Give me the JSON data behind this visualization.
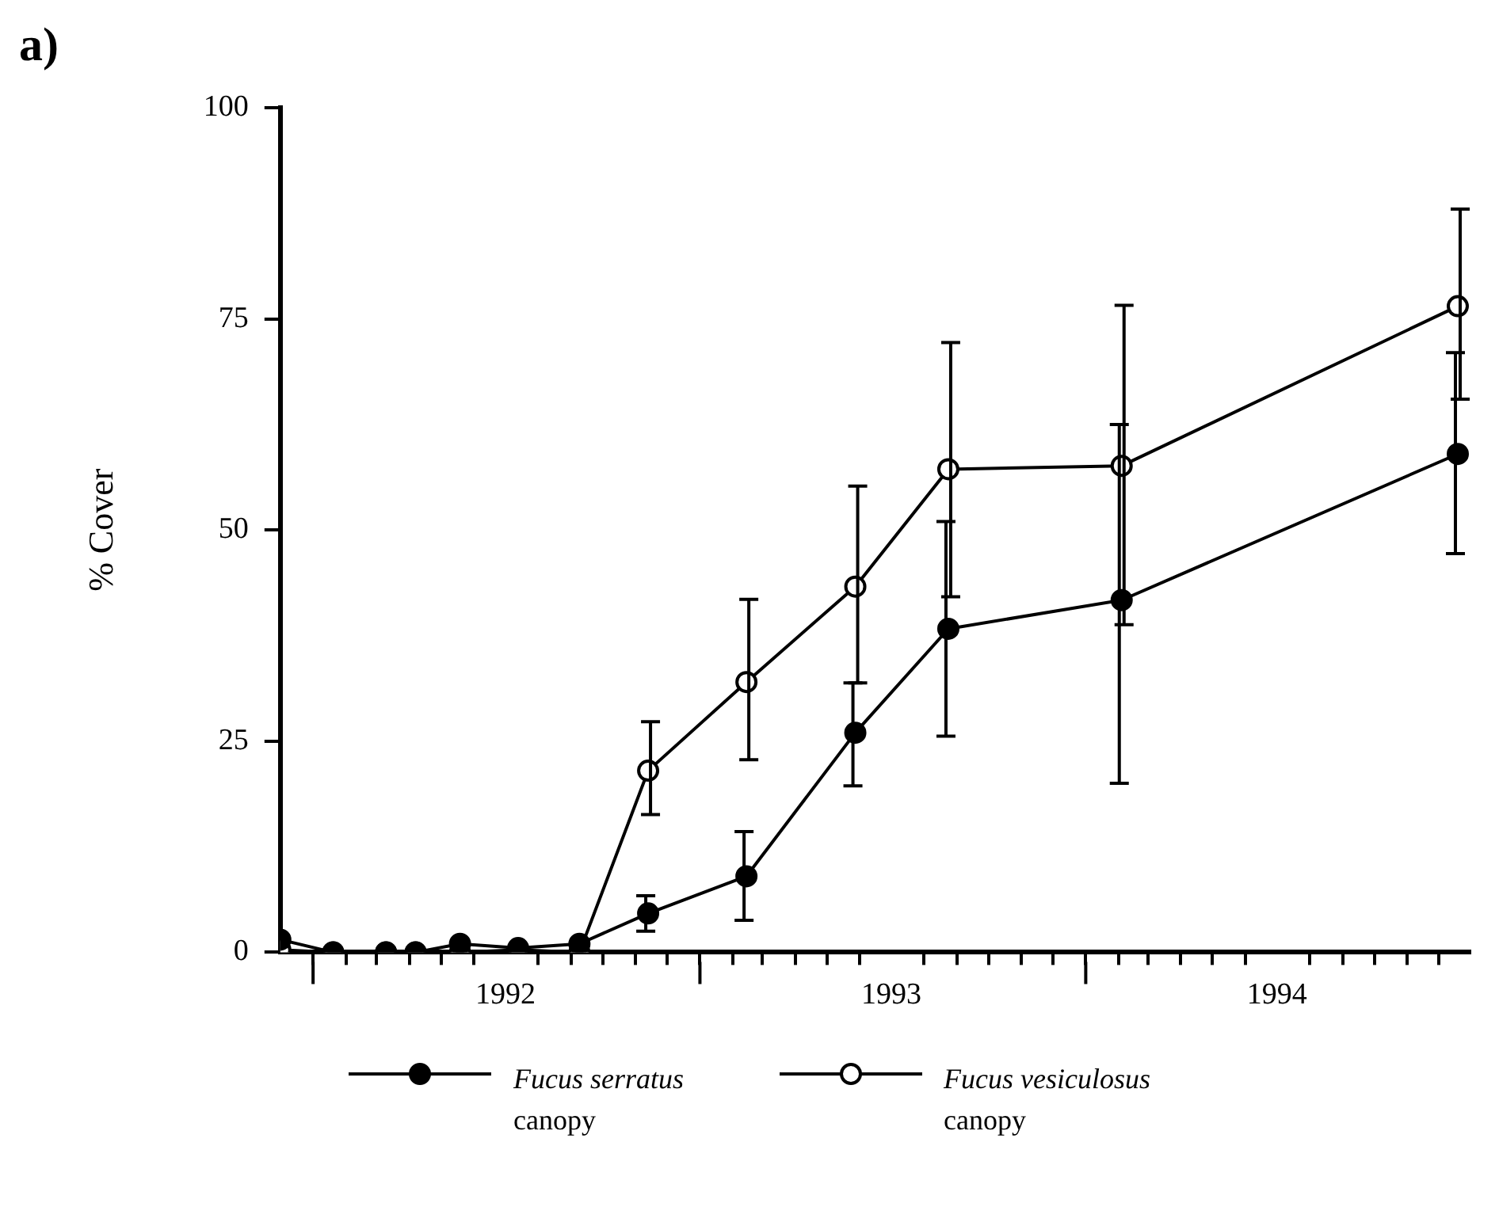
{
  "chart_data": {
    "type": "line",
    "ylabel": "% Cover",
    "annotations": [
      "a)"
    ],
    "xlim": [
      "1991-12-01",
      "1994-12-31"
    ],
    "xticks": [
      {
        "value": "1992-01-01",
        "label": null
      },
      {
        "value": "1992-02-01",
        "label": null
      },
      {
        "value": "1992-03-01",
        "label": null
      },
      {
        "value": "1992-04-01",
        "label": null
      },
      {
        "value": "1992-05-01",
        "label": null
      },
      {
        "value": "1992-06-01",
        "label": null
      },
      {
        "value": "1992-07-01",
        "label": "1992"
      },
      {
        "value": "1992-08-01",
        "label": null
      },
      {
        "value": "1992-09-01",
        "label": null
      },
      {
        "value": "1992-10-01",
        "label": null
      },
      {
        "value": "1992-11-01",
        "label": null
      },
      {
        "value": "1992-12-01",
        "label": null
      },
      {
        "value": "1993-01-01",
        "label": null
      },
      {
        "value": "1993-02-01",
        "label": null
      },
      {
        "value": "1993-03-01",
        "label": null
      },
      {
        "value": "1993-04-01",
        "label": null
      },
      {
        "value": "1993-05-01",
        "label": null
      },
      {
        "value": "1993-06-01",
        "label": null
      },
      {
        "value": "1993-07-01",
        "label": "1993"
      },
      {
        "value": "1993-08-01",
        "label": null
      },
      {
        "value": "1993-09-01",
        "label": null
      },
      {
        "value": "1993-10-01",
        "label": null
      },
      {
        "value": "1993-11-01",
        "label": null
      },
      {
        "value": "1993-12-01",
        "label": null
      },
      {
        "value": "1994-01-01",
        "label": null
      },
      {
        "value": "1994-02-01",
        "label": null
      },
      {
        "value": "1994-03-01",
        "label": null
      },
      {
        "value": "1994-04-01",
        "label": null
      },
      {
        "value": "1994-05-01",
        "label": null
      },
      {
        "value": "1994-06-01",
        "label": null
      },
      {
        "value": "1994-07-01",
        "label": "1994"
      },
      {
        "value": "1994-08-01",
        "label": null
      },
      {
        "value": "1994-09-01",
        "label": null
      },
      {
        "value": "1994-10-01",
        "label": null
      },
      {
        "value": "1994-11-01",
        "label": null
      },
      {
        "value": "1994-12-01",
        "label": null
      }
    ],
    "ylim": [
      0,
      100
    ],
    "yticks": [
      0,
      25,
      50,
      75,
      100
    ],
    "x": [
      "1991-12-01",
      "1992-01-20",
      "1992-03-10",
      "1992-04-07",
      "1992-05-19",
      "1992-07-13",
      "1992-09-09",
      "1992-11-13",
      "1993-02-14",
      "1993-05-28",
      "1993-08-24",
      "1994-02-04",
      "1994-12-19"
    ],
    "marker": "circle",
    "legend": "bottom",
    "series": [
      {
        "name": "Fucus serratus canopy",
        "color": "#000000",
        "values": [
          1.5,
          0,
          0,
          0,
          1,
          0.5,
          1,
          4.6,
          9,
          26,
          38.3,
          41.7,
          59
        ],
        "errors": [
          null,
          null,
          null,
          null,
          null,
          null,
          null,
          [
            2.5,
            6.7
          ],
          [
            3.8,
            14.3
          ],
          [
            19.7,
            31.9
          ],
          [
            25.6,
            51
          ],
          [
            20,
            62.5
          ],
          [
            47.2,
            71
          ]
        ]
      },
      {
        "name": "Fucus vesiculosus canopy",
        "color": "#000000",
        "values": [
          0.3,
          0,
          0,
          0,
          0,
          0.3,
          0,
          21.5,
          32,
          43.3,
          57.2,
          57.6,
          76.5
        ],
        "errors": [
          null,
          null,
          null,
          null,
          null,
          null,
          null,
          [
            16.3,
            27.3
          ],
          [
            22.8,
            41.8
          ],
          [
            31.9,
            55.2
          ],
          [
            42.1,
            72.2
          ],
          [
            38.8,
            76.6
          ],
          [
            65.5,
            88
          ]
        ]
      }
    ]
  }
}
